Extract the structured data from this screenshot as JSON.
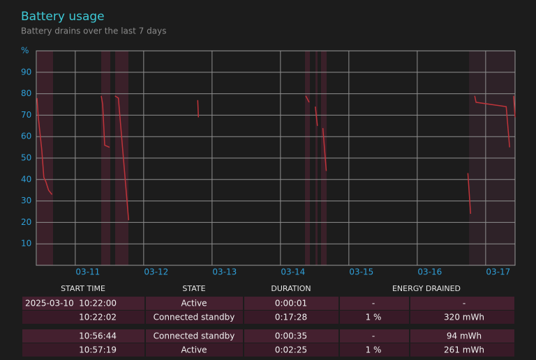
{
  "header": {
    "title": "Battery usage",
    "subtitle": "Battery drains over the last 7 days"
  },
  "chart_data": {
    "type": "line",
    "color": "#c0343a",
    "grid": true,
    "x": [
      10.44,
      10.46,
      10.51,
      10.54,
      10.57,
      10.61,
      10.66,
      null,
      11.38,
      11.4,
      11.43,
      11.5,
      null,
      11.58,
      11.63,
      11.78,
      null,
      12.79,
      12.8,
      null,
      14.37,
      14.42,
      null,
      14.51,
      14.54,
      null,
      14.62,
      14.67,
      null,
      16.74,
      16.78,
      null,
      16.84,
      16.86,
      17.3,
      17.35,
      null,
      17.41,
      17.43
    ],
    "values": [
      78,
      69,
      54,
      41,
      39,
      35,
      33,
      null,
      79,
      75,
      56,
      55,
      null,
      79,
      78,
      21,
      null,
      77,
      69,
      null,
      79,
      76,
      null,
      74,
      65,
      null,
      64,
      44,
      null,
      43,
      24,
      null,
      79,
      76,
      74,
      55,
      null,
      79,
      69
    ],
    "bands": [
      [
        10.44,
        10.675
      ],
      [
        11.379,
        11.512
      ],
      [
        11.583,
        11.777
      ],
      [
        14.359,
        14.43
      ],
      [
        14.512,
        14.542
      ],
      [
        14.593,
        14.675
      ],
      [
        16.757,
        17.43
      ]
    ],
    "xlim": [
      10.43,
      17.43
    ],
    "ylim": [
      0,
      100
    ],
    "xticks": [
      {
        "value": 11,
        "label": "03-11"
      },
      {
        "value": 12,
        "label": "03-12"
      },
      {
        "value": 13,
        "label": "03-13"
      },
      {
        "value": 14,
        "label": "03-14"
      },
      {
        "value": 15,
        "label": "03-15"
      },
      {
        "value": 16,
        "label": "03-16"
      },
      {
        "value": 17,
        "label": "03-17"
      }
    ],
    "yticks": [
      10,
      20,
      30,
      40,
      50,
      60,
      70,
      80,
      90,
      {
        "value": 100,
        "label": "%"
      }
    ]
  },
  "table": {
    "headers": [
      "START TIME",
      "STATE",
      "DURATION",
      "ENERGY DRAINED"
    ],
    "rows": [
      [
        "2025-03-10",
        "10:22:00",
        "Active",
        "0:00:01",
        "-",
        "-"
      ],
      [
        null,
        "10:22:02",
        "Connected standby",
        "0:17:28",
        "1 %",
        "320 mWh"
      ],
      [
        null,
        "10:56:44",
        "Connected standby",
        "0:00:35",
        "-",
        "94 mWh"
      ],
      [
        null,
        "10:57:19",
        "Active",
        "0:02:25",
        "1 %",
        "261 mWh"
      ]
    ]
  }
}
